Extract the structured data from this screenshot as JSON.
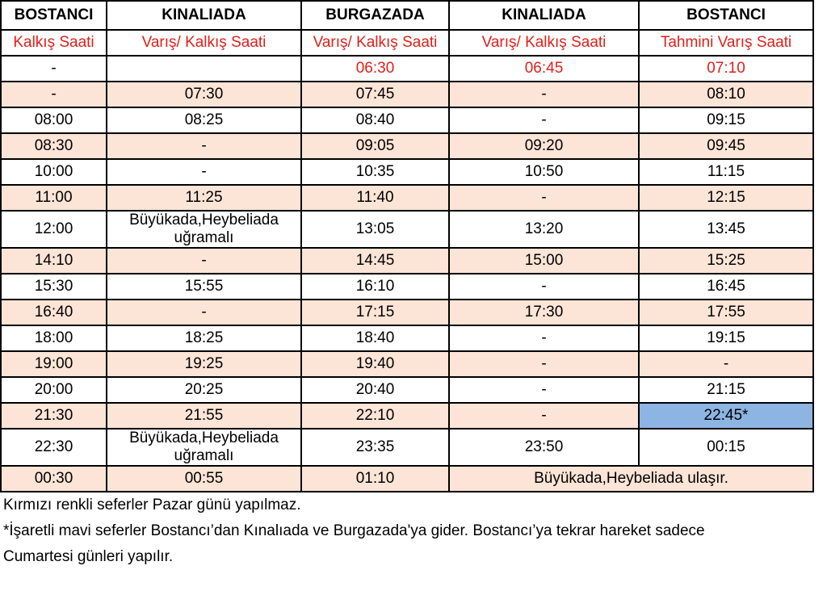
{
  "table": {
    "header": [
      "BOSTANCI",
      "KINALIADA",
      "BURGAZADA",
      "KINALIADA",
      "BOSTANCI"
    ],
    "subheader": [
      "Kalkış Saati",
      "Varış/ Kalkış Saati",
      "Varış/ Kalkış Saati",
      "Varış/ Kalkış Saati",
      "Tahmini Varış Saati"
    ],
    "rows": [
      [
        "-",
        null,
        "06:30",
        "06:45",
        "07:10"
      ],
      [
        "-",
        "07:30",
        "07:45",
        "-",
        "08:10"
      ],
      [
        "08:00",
        "08:25",
        "08:40",
        "-",
        "09:15"
      ],
      [
        "08:30",
        "-",
        "09:05",
        "09:20",
        "09:45"
      ],
      [
        "10:00",
        "-",
        "10:35",
        "10:50",
        "11:15"
      ],
      [
        "11:00",
        "11:25",
        "11:40",
        "-",
        "12:15"
      ],
      [
        "12:00",
        "Büyükada,Heybeliada uğramalı",
        "13:05",
        "13:20",
        "13:45"
      ],
      [
        "14:10",
        "-",
        "14:45",
        "15:00",
        "15:25"
      ],
      [
        "15:30",
        "15:55",
        "16:10",
        "-",
        "16:45"
      ],
      [
        "16:40",
        "-",
        "17:15",
        "17:30",
        "17:55"
      ],
      [
        "18:00",
        "18:25",
        "18:40",
        "-",
        "19:15"
      ],
      [
        "19:00",
        "19:25",
        "19:40",
        "-",
        "-"
      ],
      [
        "20:00",
        "20:25",
        "20:40",
        "-",
        "21:15"
      ],
      [
        "21:30",
        "21:55",
        "22:10",
        "-",
        "22:45*"
      ],
      [
        "22:30",
        "Büyükada,Heybeliada uğramalı",
        "23:35",
        "23:50",
        "00:15"
      ],
      [
        "00:30",
        "00:55",
        "01:10",
        "Büyükada,Heybeliada ulaşır."
      ]
    ]
  },
  "notes": [
    "Kırmızı renkli seferler Pazar günü yapılmaz.",
    "*İşaretli mavi seferler Bostancı’dan Kınalıada ve Burgazada'ya gider. Bostancı’ya tekrar hareket sadece",
    "Cumartesi günleri yapılır."
  ]
}
